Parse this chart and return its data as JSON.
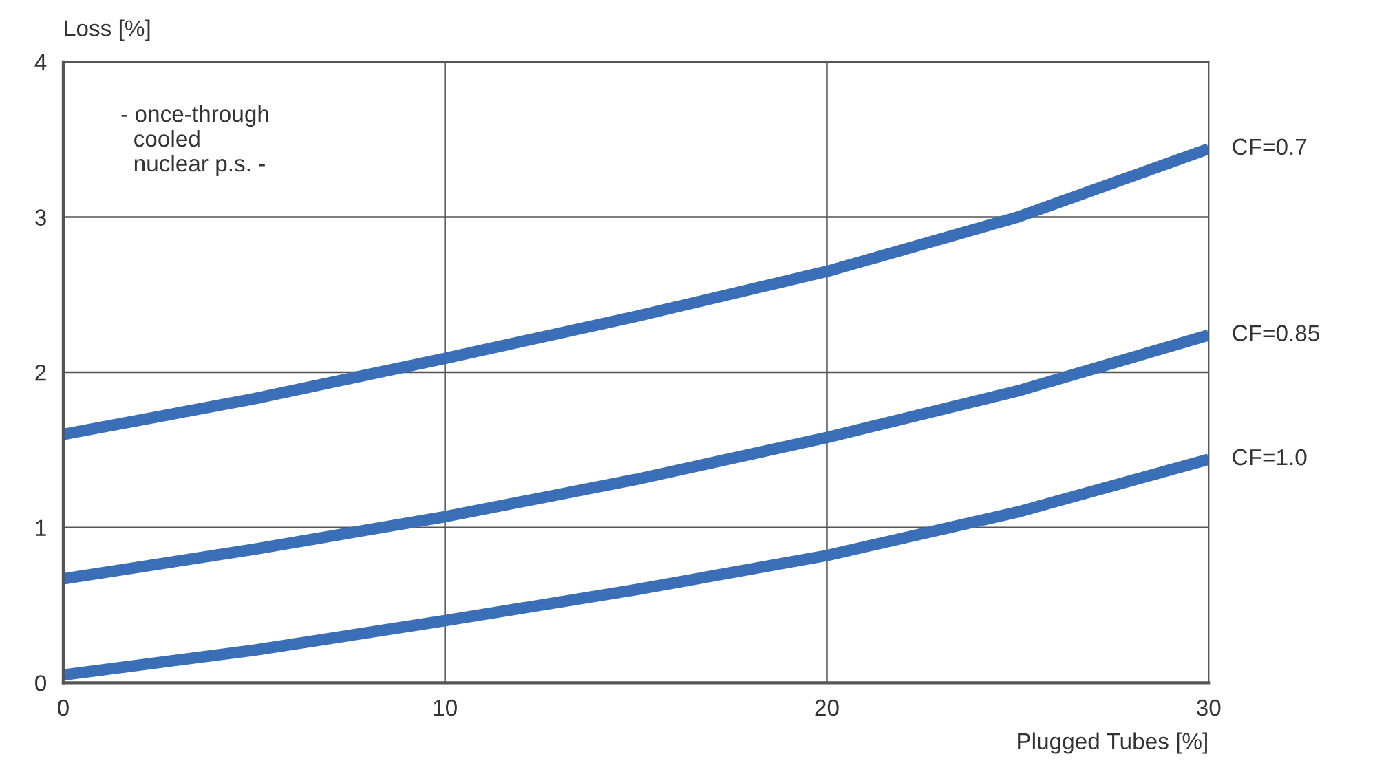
{
  "chart_data": {
    "type": "line",
    "xlabel": "Plugged Tubes [%]",
    "ylabel": "Loss [%]",
    "x": [
      0,
      5,
      10,
      15,
      20,
      25,
      30
    ],
    "series": [
      {
        "name": "CF=0.7",
        "color": "#3a6fb8",
        "values": [
          1.6,
          1.83,
          2.09,
          2.36,
          2.65,
          3.0,
          3.44
        ]
      },
      {
        "name": "CF=0.85",
        "color": "#3a6fb8",
        "values": [
          0.67,
          0.86,
          1.07,
          1.31,
          1.58,
          1.88,
          2.24
        ]
      },
      {
        "name": "CF=1.0",
        "color": "#3a6fb8",
        "values": [
          0.05,
          0.21,
          0.4,
          0.6,
          0.82,
          1.1,
          1.44
        ]
      }
    ],
    "xlim": [
      0,
      30
    ],
    "ylim": [
      0,
      4
    ],
    "xticks": [
      0,
      10,
      20,
      30
    ],
    "yticks": [
      0,
      1,
      2,
      3,
      4
    ],
    "grid": true,
    "line_style": "solid",
    "annotations": [
      "- once-through\n  cooled\n  nuclear p.s. -"
    ]
  }
}
